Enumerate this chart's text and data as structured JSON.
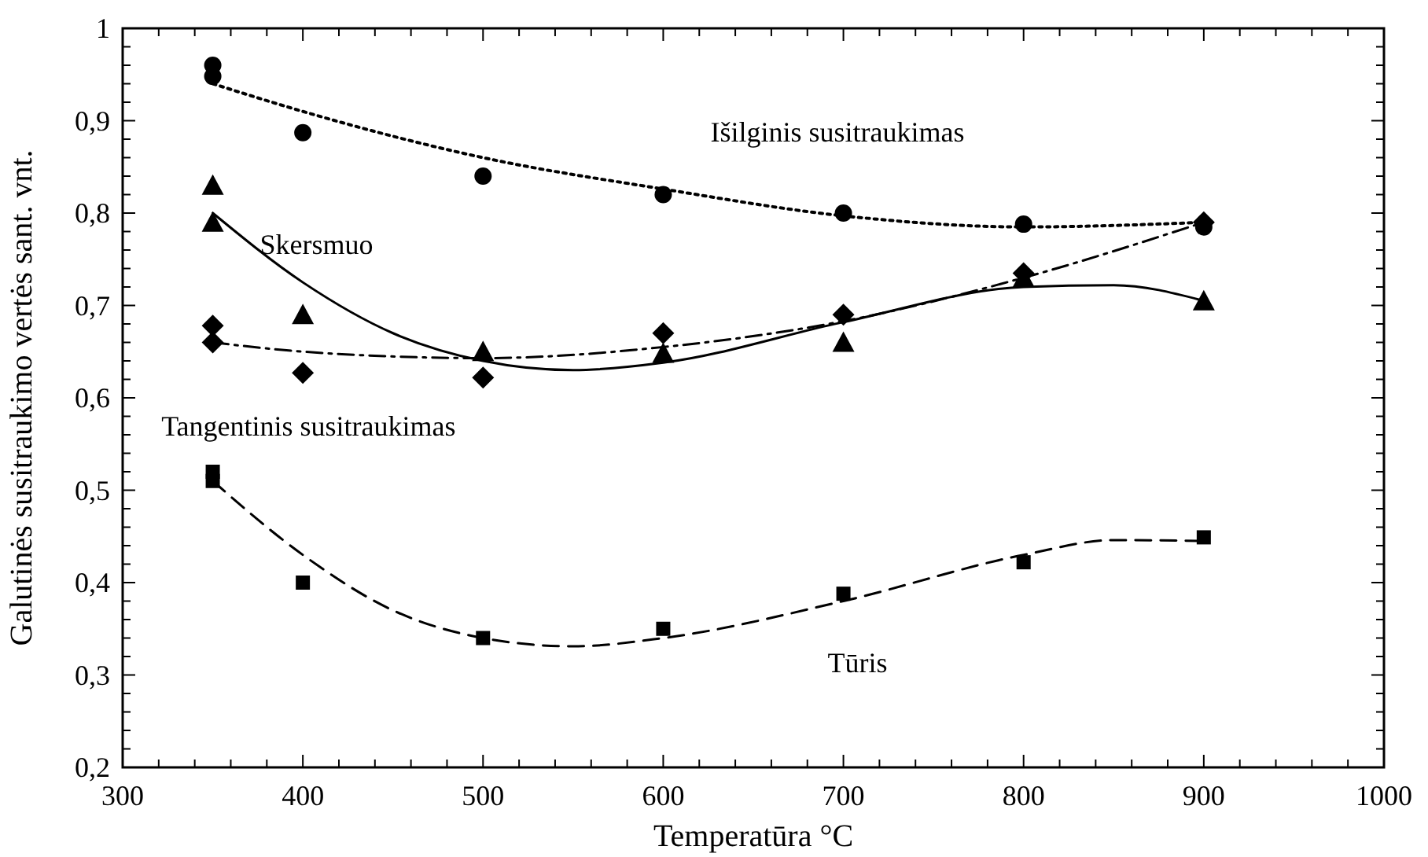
{
  "chart_data": {
    "type": "scatter",
    "xlabel": "Temperatūra °C",
    "ylabel": "Galutinės susitraukimo vertės sant. vnt.",
    "xlim": [
      300,
      1000
    ],
    "xticks": [
      300,
      400,
      500,
      600,
      700,
      800,
      900,
      1000
    ],
    "ylim": [
      0.2,
      1
    ],
    "yticks": [
      {
        "value": 0.2,
        "label": "0,2"
      },
      {
        "value": 0.3,
        "label": "0,3"
      },
      {
        "value": 0.4,
        "label": "0,4"
      },
      {
        "value": 0.5,
        "label": "0,5"
      },
      {
        "value": 0.6,
        "label": "0,6"
      },
      {
        "value": 0.7,
        "label": "0,7"
      },
      {
        "value": 0.8,
        "label": "0,8"
      },
      {
        "value": 0.9,
        "label": "0,9"
      },
      {
        "value": 1,
        "label": "1"
      }
    ],
    "grid": false,
    "series": [
      {
        "name": "Išilginis susitraukimas",
        "color": "#000000",
        "marker": "circle",
        "x": [
          350,
          350,
          400,
          500,
          600,
          700,
          800,
          900
        ],
        "values": [
          0.96,
          0.948,
          0.887,
          0.84,
          0.82,
          0.8,
          0.788,
          0.785
        ]
      },
      {
        "name": "Skersmuo",
        "color": "#000000",
        "marker": "triangle",
        "x": [
          350,
          350,
          400,
          500,
          600,
          700,
          800,
          900
        ],
        "values": [
          0.83,
          0.79,
          0.69,
          0.65,
          0.648,
          0.66,
          0.73,
          0.705
        ]
      },
      {
        "name": "Tangentinis susitraukimas",
        "color": "#000000",
        "marker": "diamond",
        "x": [
          350,
          350,
          400,
          500,
          600,
          700,
          800,
          900
        ],
        "values": [
          0.678,
          0.66,
          0.627,
          0.622,
          0.67,
          0.69,
          0.735,
          0.79
        ]
      },
      {
        "name": "Tūris",
        "color": "#000000",
        "marker": "square",
        "x": [
          350,
          350,
          400,
          500,
          600,
          700,
          800,
          900
        ],
        "values": [
          0.52,
          0.51,
          0.4,
          0.34,
          0.35,
          0.388,
          0.422,
          0.449
        ]
      },
      {
        "type": "line",
        "color": "#000000",
        "line_style": "dotted",
        "x": [
          350,
          400,
          500,
          600,
          700,
          800,
          900
        ],
        "values": [
          0.94,
          0.91,
          0.86,
          0.826,
          0.797,
          0.785,
          0.79
        ]
      },
      {
        "type": "line",
        "color": "#000000",
        "line_style": "solid",
        "x": [
          350,
          400,
          450,
          500,
          550,
          600,
          700,
          800,
          850,
          900
        ],
        "values": [
          0.8,
          0.725,
          0.67,
          0.64,
          0.63,
          0.638,
          0.682,
          0.72,
          0.722,
          0.705
        ]
      },
      {
        "type": "line",
        "color": "#000000",
        "line_style": "dashdot",
        "x": [
          350,
          400,
          500,
          600,
          700,
          800,
          900
        ],
        "values": [
          0.66,
          0.65,
          0.643,
          0.655,
          0.683,
          0.73,
          0.79
        ]
      },
      {
        "type": "line",
        "color": "#000000",
        "line_style": "dashed",
        "x": [
          350,
          400,
          450,
          500,
          550,
          600,
          700,
          800,
          850,
          900
        ],
        "values": [
          0.51,
          0.43,
          0.37,
          0.34,
          0.331,
          0.34,
          0.38,
          0.43,
          0.446,
          0.445
        ]
      }
    ]
  }
}
